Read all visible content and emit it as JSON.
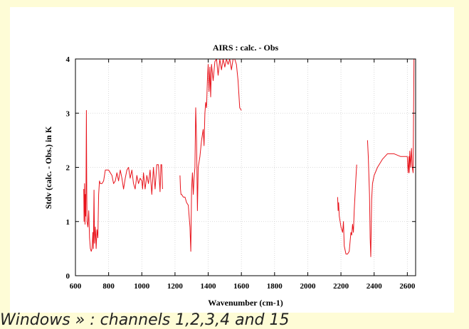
{
  "caption": "Windows » : channels 1,2,3,4 and 15",
  "chart_data": {
    "type": "line",
    "title": "AIRS : calc. - Obs",
    "xlabel": "Wavenumber (cm-1)",
    "ylabel": "Stdv (calc. - Obs.) in K",
    "xlim": [
      600,
      2650
    ],
    "ylim": [
      0,
      4
    ],
    "xticks": [
      600,
      800,
      1000,
      1200,
      1400,
      1600,
      1800,
      2000,
      2200,
      2400,
      2600
    ],
    "yticks": [
      0,
      1,
      2,
      3,
      4
    ],
    "grid": true,
    "line_color": "#e8141c",
    "segments": [
      [
        [
          650,
          1.6
        ],
        [
          652,
          1.0
        ],
        [
          655,
          1.7
        ],
        [
          658,
          0.95
        ],
        [
          660,
          1.5
        ],
        [
          662,
          1.1
        ],
        [
          664,
          1.7
        ],
        [
          666,
          3.05
        ],
        [
          668,
          1.6
        ],
        [
          670,
          1.0
        ],
        [
          675,
          0.9
        ],
        [
          680,
          1.2
        ],
        [
          685,
          0.7
        ],
        [
          690,
          0.5
        ],
        [
          695,
          0.45
        ],
        [
          700,
          0.5
        ],
        [
          705,
          0.8
        ],
        [
          708,
          0.5
        ],
        [
          712,
          1.58
        ],
        [
          715,
          0.6
        ],
        [
          720,
          0.9
        ],
        [
          725,
          0.5
        ],
        [
          730,
          0.85
        ],
        [
          735,
          0.7
        ],
        [
          740,
          1.5
        ],
        [
          745,
          1.75
        ],
        [
          750,
          1.7
        ],
        [
          760,
          1.7
        ],
        [
          770,
          1.75
        ],
        [
          780,
          1.95
        ],
        [
          790,
          1.95
        ],
        [
          800,
          1.95
        ],
        [
          820,
          1.85
        ],
        [
          830,
          1.7
        ],
        [
          840,
          1.75
        ],
        [
          850,
          1.9
        ],
        [
          860,
          1.75
        ],
        [
          870,
          1.95
        ],
        [
          880,
          1.8
        ],
        [
          890,
          1.6
        ],
        [
          900,
          1.8
        ],
        [
          910,
          1.95
        ],
        [
          920,
          2.0
        ],
        [
          930,
          1.8
        ],
        [
          940,
          1.95
        ],
        [
          950,
          1.7
        ],
        [
          960,
          1.6
        ],
        [
          970,
          1.85
        ],
        [
          980,
          1.7
        ],
        [
          990,
          1.8
        ],
        [
          1000,
          1.75
        ],
        [
          1005,
          1.6
        ],
        [
          1010,
          1.9
        ],
        [
          1020,
          1.6
        ],
        [
          1030,
          1.85
        ],
        [
          1040,
          1.7
        ],
        [
          1050,
          1.95
        ],
        [
          1060,
          1.5
        ],
        [
          1070,
          2.0
        ],
        [
          1080,
          1.6
        ],
        [
          1090,
          2.05
        ],
        [
          1100,
          2.05
        ],
        [
          1110,
          1.55
        ],
        [
          1115,
          2.05
        ],
        [
          1120,
          2.05
        ],
        [
          1125,
          1.6
        ]
      ],
      [
        [
          1230,
          1.85
        ],
        [
          1233,
          1.6
        ],
        [
          1236,
          1.5
        ],
        [
          1240,
          1.5
        ],
        [
          1250,
          1.45
        ],
        [
          1260,
          1.45
        ],
        [
          1270,
          1.35
        ],
        [
          1280,
          1.3
        ],
        [
          1290,
          0.9
        ],
        [
          1295,
          0.45
        ],
        [
          1300,
          1.6
        ],
        [
          1305,
          1.9
        ],
        [
          1310,
          1.5
        ],
        [
          1315,
          1.8
        ],
        [
          1320,
          2.0
        ],
        [
          1325,
          3.1
        ],
        [
          1330,
          2.5
        ],
        [
          1335,
          1.2
        ],
        [
          1340,
          2.0
        ],
        [
          1350,
          2.2
        ],
        [
          1360,
          2.5
        ],
        [
          1370,
          2.7
        ],
        [
          1375,
          2.4
        ],
        [
          1380,
          3.0
        ],
        [
          1385,
          3.2
        ],
        [
          1390,
          3.1
        ],
        [
          1395,
          3.6
        ],
        [
          1400,
          3.9
        ],
        [
          1405,
          3.4
        ],
        [
          1410,
          3.85
        ],
        [
          1415,
          3.3
        ],
        [
          1420,
          3.9
        ],
        [
          1430,
          3.6
        ],
        [
          1440,
          3.95
        ],
        [
          1450,
          4.0
        ],
        [
          1460,
          3.7
        ],
        [
          1470,
          4.0
        ],
        [
          1480,
          3.8
        ],
        [
          1490,
          4.0
        ],
        [
          1500,
          3.85
        ],
        [
          1510,
          4.0
        ],
        [
          1520,
          3.9
        ],
        [
          1530,
          4.0
        ],
        [
          1540,
          3.8
        ],
        [
          1550,
          4.0
        ],
        [
          1560,
          4.0
        ],
        [
          1570,
          3.9
        ],
        [
          1580,
          3.6
        ],
        [
          1590,
          3.1
        ],
        [
          1600,
          3.05
        ]
      ],
      [
        [
          2180,
          1.45
        ],
        [
          2183,
          1.2
        ],
        [
          2186,
          1.35
        ],
        [
          2190,
          1.1
        ],
        [
          2200,
          0.9
        ],
        [
          2210,
          0.8
        ],
        [
          2215,
          1.0
        ],
        [
          2220,
          0.55
        ],
        [
          2230,
          0.4
        ],
        [
          2240,
          0.4
        ],
        [
          2250,
          0.45
        ],
        [
          2260,
          0.8
        ],
        [
          2265,
          0.75
        ],
        [
          2270,
          0.95
        ],
        [
          2275,
          0.8
        ],
        [
          2280,
          1.2
        ],
        [
          2285,
          1.5
        ],
        [
          2290,
          1.8
        ],
        [
          2295,
          2.05
        ]
      ],
      [
        [
          2360,
          2.5
        ],
        [
          2365,
          2.2
        ],
        [
          2368,
          1.9
        ],
        [
          2372,
          1.5
        ],
        [
          2376,
          0.7
        ],
        [
          2380,
          0.35
        ],
        [
          2385,
          1.4
        ],
        [
          2390,
          1.7
        ],
        [
          2400,
          1.85
        ],
        [
          2420,
          2.0
        ],
        [
          2450,
          2.15
        ],
        [
          2480,
          2.25
        ],
        [
          2520,
          2.25
        ],
        [
          2560,
          2.2
        ],
        [
          2600,
          2.2
        ],
        [
          2605,
          1.9
        ],
        [
          2610,
          2.2
        ],
        [
          2612,
          1.9
        ],
        [
          2615,
          2.3
        ],
        [
          2620,
          2.0
        ],
        [
          2625,
          2.35
        ],
        [
          2630,
          2.0
        ],
        [
          2635,
          1.9
        ],
        [
          2640,
          4.0
        ]
      ]
    ]
  }
}
